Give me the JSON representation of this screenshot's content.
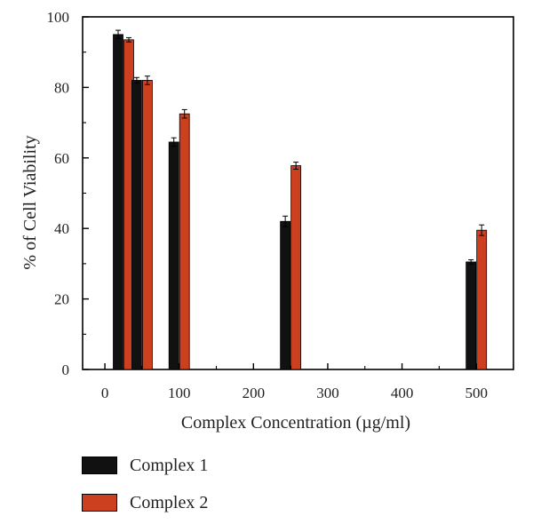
{
  "chart_data": {
    "type": "bar",
    "xlabel": "Complex Concentration (µg/ml)",
    "ylabel": "% of Cell Viability",
    "xlim": [
      -30,
      550
    ],
    "ylim": [
      0,
      100
    ],
    "xticks": [
      0,
      100,
      200,
      300,
      400,
      500
    ],
    "yticks": [
      0,
      20,
      40,
      60,
      80,
      100
    ],
    "x": [
      25,
      50,
      100,
      250,
      500
    ],
    "series": [
      {
        "name": "Complex 1",
        "color": "#111111",
        "values": [
          95,
          82,
          64.5,
          42,
          30.5
        ],
        "errors": [
          1.2,
          0.8,
          1.2,
          1.5,
          0.6
        ]
      },
      {
        "name": "Complex 2",
        "color": "#cc3f1f",
        "values": [
          93.5,
          82,
          72.5,
          57.8,
          39.5
        ],
        "errors": [
          0.6,
          1.2,
          1.2,
          1.0,
          1.5
        ]
      }
    ],
    "grid": false,
    "legend_position": "bottom-left"
  }
}
